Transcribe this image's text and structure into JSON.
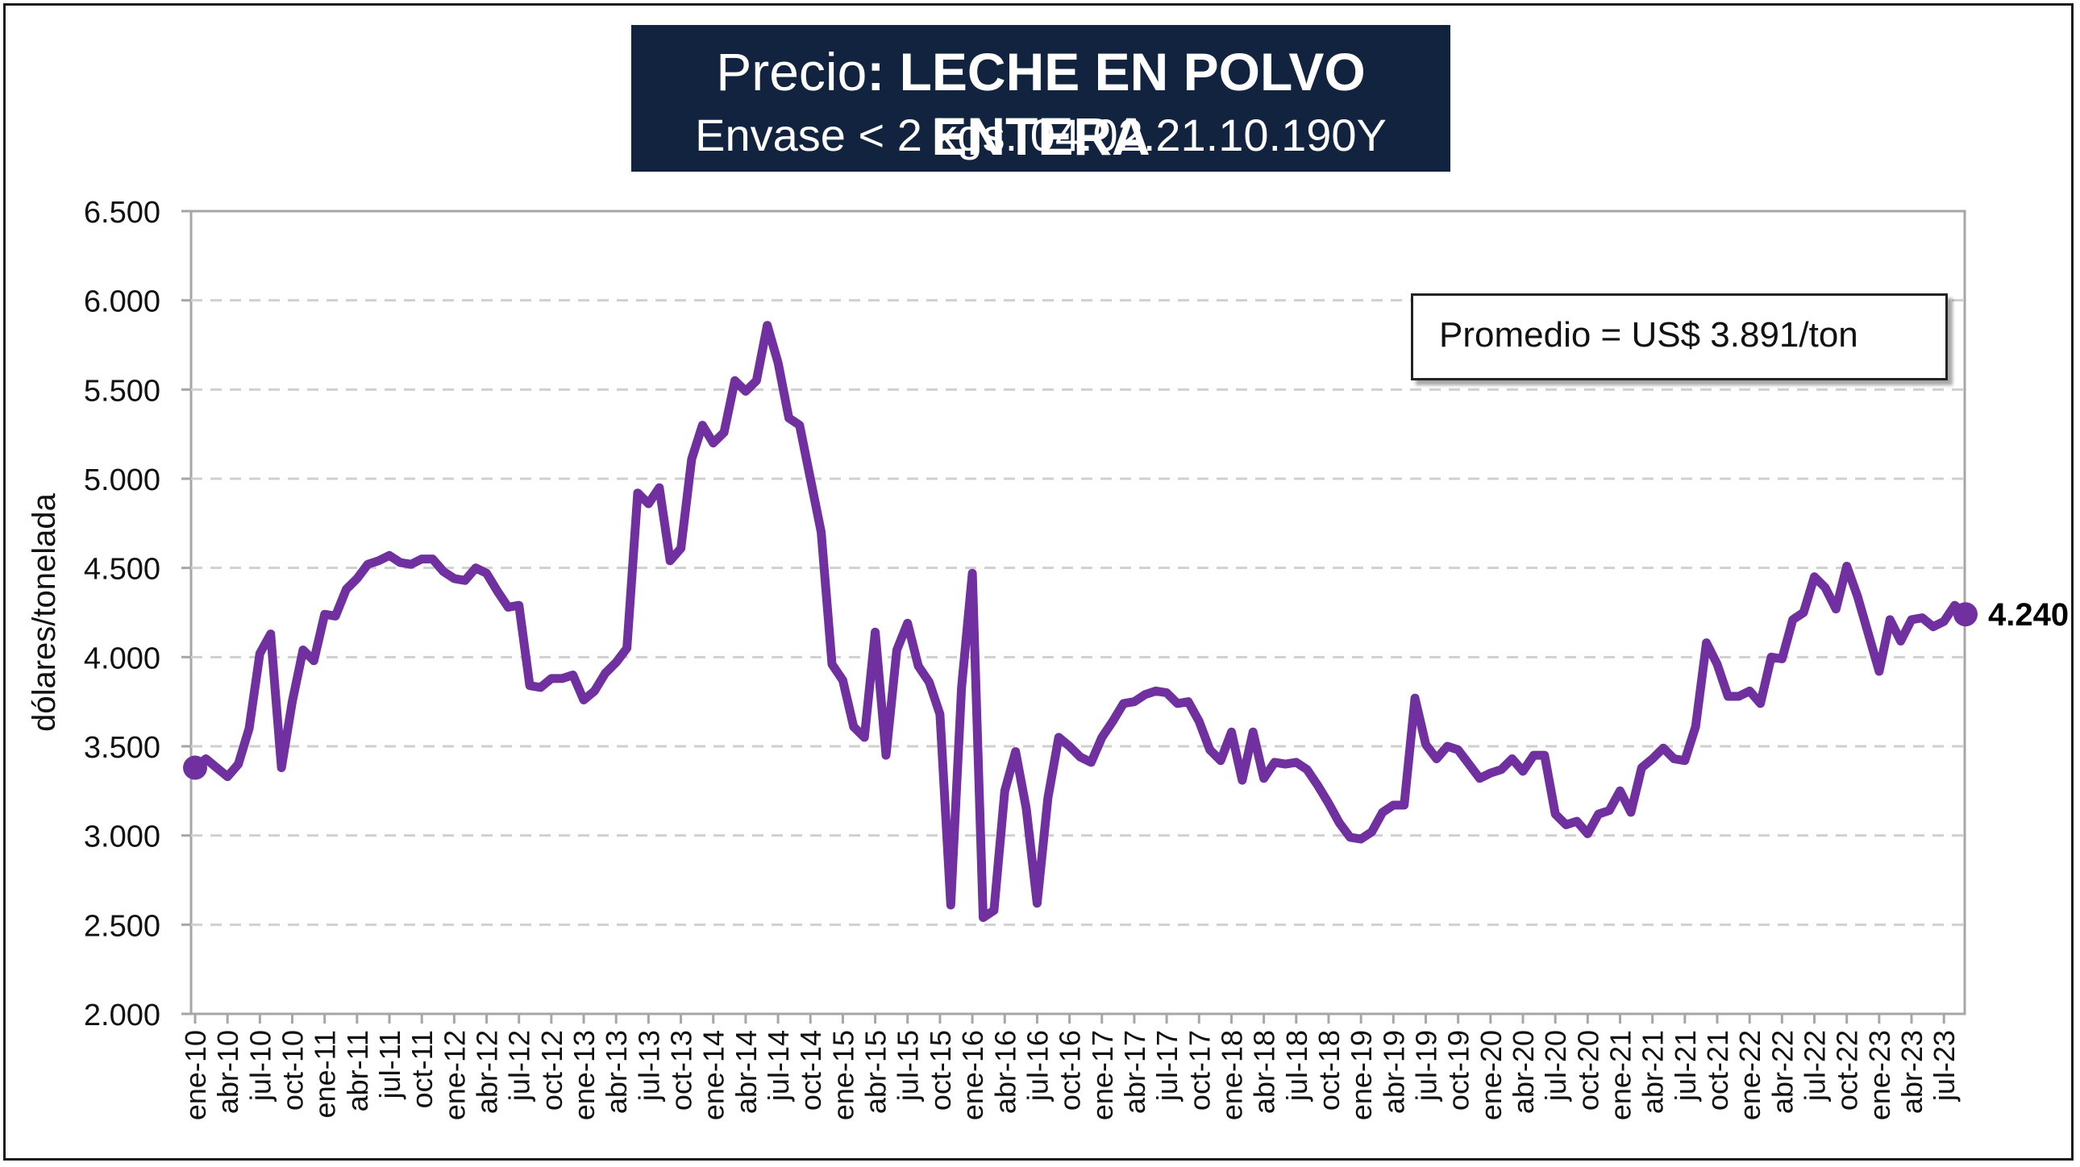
{
  "title": {
    "prefix": "Precio",
    "main": ": LECHE EN POLVO ENTERA",
    "subtitle": "Envase < 2 kgs. 04.02.21.10.190Y"
  },
  "annotation": {
    "average_label": "Promedio = US$ 3.891/ton",
    "last_value_label": "4.240"
  },
  "colors": {
    "line": "#7030a0",
    "title_bg": "#12233f",
    "grid": "#d0d0d0"
  },
  "chart_data": {
    "type": "line",
    "ylabel": "dólares/tonelada",
    "xlabel": "",
    "ylim": [
      2000,
      6500
    ],
    "yticks": [
      "2.000",
      "2.500",
      "3.000",
      "3.500",
      "4.000",
      "4.500",
      "5.000",
      "5.500",
      "6.000",
      "6.500"
    ],
    "ytick_values": [
      2000,
      2500,
      3000,
      3500,
      4000,
      4500,
      5000,
      5500,
      6000,
      6500
    ],
    "grid": "horizontal dashed",
    "xtick_labels": [
      "ene-10",
      "abr-10",
      "jul-10",
      "oct-10",
      "ene-11",
      "abr-11",
      "jul-11",
      "oct-11",
      "ene-12",
      "abr-12",
      "jul-12",
      "oct-12",
      "ene-13",
      "abr-13",
      "jul-13",
      "oct-13",
      "ene-14",
      "abr-14",
      "jul-14",
      "oct-14",
      "ene-15",
      "abr-15",
      "jul-15",
      "oct-15",
      "ene-16",
      "abr-16",
      "jul-16",
      "oct-16",
      "ene-17",
      "abr-17",
      "jul-17",
      "oct-17",
      "ene-18",
      "abr-18",
      "jul-18",
      "oct-18",
      "ene-19",
      "abr-19",
      "jul-19",
      "oct-19",
      "ene-20",
      "abr-20",
      "jul-20",
      "oct-20",
      "ene-21",
      "abr-21",
      "jul-21",
      "oct-21",
      "ene-22",
      "abr-22",
      "jul-22",
      "oct-22",
      "ene-23",
      "abr-23",
      "jul-23"
    ],
    "series": [
      {
        "x_start": "ene-10",
        "frequency": "monthly",
        "values": [
          3380,
          3430,
          3380,
          3330,
          3400,
          3600,
          4020,
          4130,
          3380,
          3750,
          4040,
          3980,
          4240,
          4230,
          4380,
          4440,
          4520,
          4540,
          4570,
          4530,
          4520,
          4550,
          4550,
          4480,
          4440,
          4430,
          4500,
          4470,
          4370,
          4280,
          4290,
          3840,
          3830,
          3880,
          3880,
          3900,
          3760,
          3810,
          3910,
          3970,
          4050,
          4920,
          4860,
          4950,
          4540,
          4610,
          5110,
          5300,
          5200,
          5260,
          5550,
          5490,
          5550,
          5860,
          5650,
          5340,
          5300,
          5000,
          4700,
          3960,
          3870,
          3610,
          3550,
          4140,
          3450,
          4040,
          4190,
          3950,
          3860,
          3680,
          2610,
          3830,
          4470,
          2540,
          2580,
          3250,
          3470,
          3150,
          2620,
          3210,
          3550,
          3500,
          3440,
          3410,
          3550,
          3640,
          3740,
          3750,
          3790,
          3810,
          3800,
          3740,
          3750,
          3640,
          3480,
          3420,
          3580,
          3310,
          3580,
          3320,
          3410,
          3400,
          3410,
          3370,
          3280,
          3180,
          3070,
          2990,
          2980,
          3020,
          3130,
          3170,
          3170,
          3770,
          3510,
          3430,
          3500,
          3480,
          3400,
          3320,
          3350,
          3370,
          3430,
          3360,
          3450,
          3450,
          3120,
          3060,
          3080,
          3010,
          3120,
          3140,
          3250,
          3130,
          3380,
          3430,
          3490,
          3430,
          3420,
          3610,
          4080,
          3960,
          3780,
          3780,
          3810,
          3740,
          4000,
          3990,
          4210,
          4250,
          4450,
          4390,
          4270,
          4510,
          4340,
          4130,
          3920,
          4210,
          4090,
          4210,
          4220,
          4170,
          4200,
          4290,
          4240
        ]
      }
    ],
    "average": 3891,
    "last_value": 4240
  }
}
